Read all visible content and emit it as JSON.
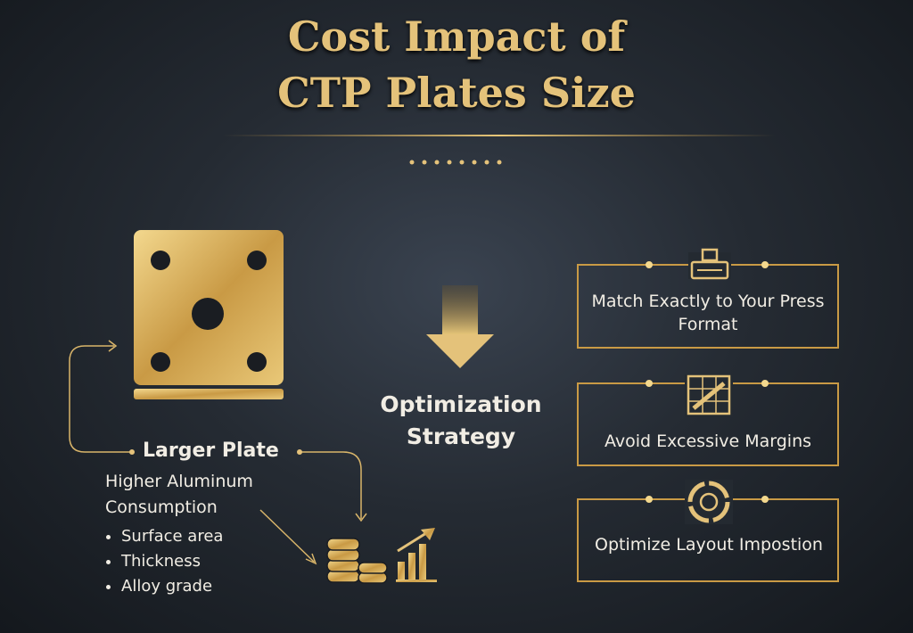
{
  "header": {
    "title_lines": [
      "Cost Impact of",
      "CTP Plates Size"
    ]
  },
  "left_panel": {
    "heading": "Larger Plate",
    "subheading": "Higher Aluminum Consumption",
    "bullets": [
      "Surface area",
      "Thickness",
      "Alloy grade"
    ]
  },
  "center": {
    "label": "Optimization Strategy"
  },
  "strategies": [
    {
      "label": "Match Exactly to Your Press Format"
    },
    {
      "label": "Avoid Excessive Margins"
    },
    {
      "label": "Optimize Layout Impostion"
    }
  ]
}
